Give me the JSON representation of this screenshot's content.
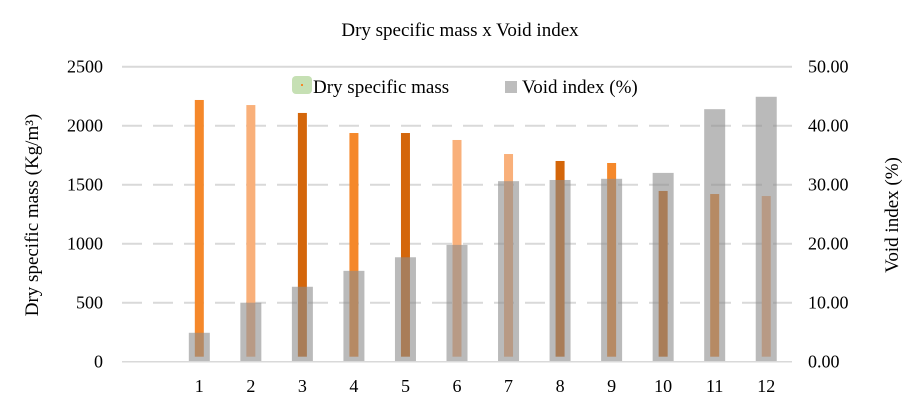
{
  "chart_data": {
    "type": "bar",
    "title": "Dry specific mass x Void index",
    "ylabel": "Dry specific mass (Kg/m³)",
    "ylabel_right": "Void index (%)",
    "categories": [
      "",
      "1",
      "2",
      "3",
      "4",
      "5",
      "6",
      "7",
      "8",
      "9",
      "10",
      "11",
      "12"
    ],
    "ylim": [
      0,
      2500
    ],
    "ylim_right": [
      0,
      50
    ],
    "yticks": [
      "0",
      "500",
      "1000",
      "1500",
      "2000",
      "2500"
    ],
    "yticks_right": [
      "0.00",
      "10.00",
      "20.00",
      "30.00",
      "40.00",
      "50.00"
    ],
    "grid": true,
    "legend_position": "top",
    "series": [
      {
        "name": "Dry specific mass",
        "axis": "left",
        "values": [
          null,
          2218,
          2175,
          2108,
          1938,
          1938,
          1879,
          1760,
          1701,
          1684,
          1447,
          1421,
          1404
        ],
        "colors": [
          null,
          "#f5882a",
          "#f9b07a",
          "#d4660a",
          "#f5882a",
          "#d4660a",
          "#f9b07a",
          "#f9b07a",
          "#d4660a",
          "#f5882a",
          "#d4660a",
          "#f5882a",
          "#f9b07a"
        ],
        "legend_color": "#c6e0b4",
        "legend_marker_color": "#f5882a"
      },
      {
        "name": "Void index (%)",
        "axis": "right",
        "values": [
          null,
          4.9,
          10.0,
          12.7,
          15.4,
          17.7,
          19.8,
          30.6,
          30.8,
          31.0,
          32.0,
          42.8,
          44.9
        ],
        "color": "#8c8c8c"
      }
    ]
  }
}
